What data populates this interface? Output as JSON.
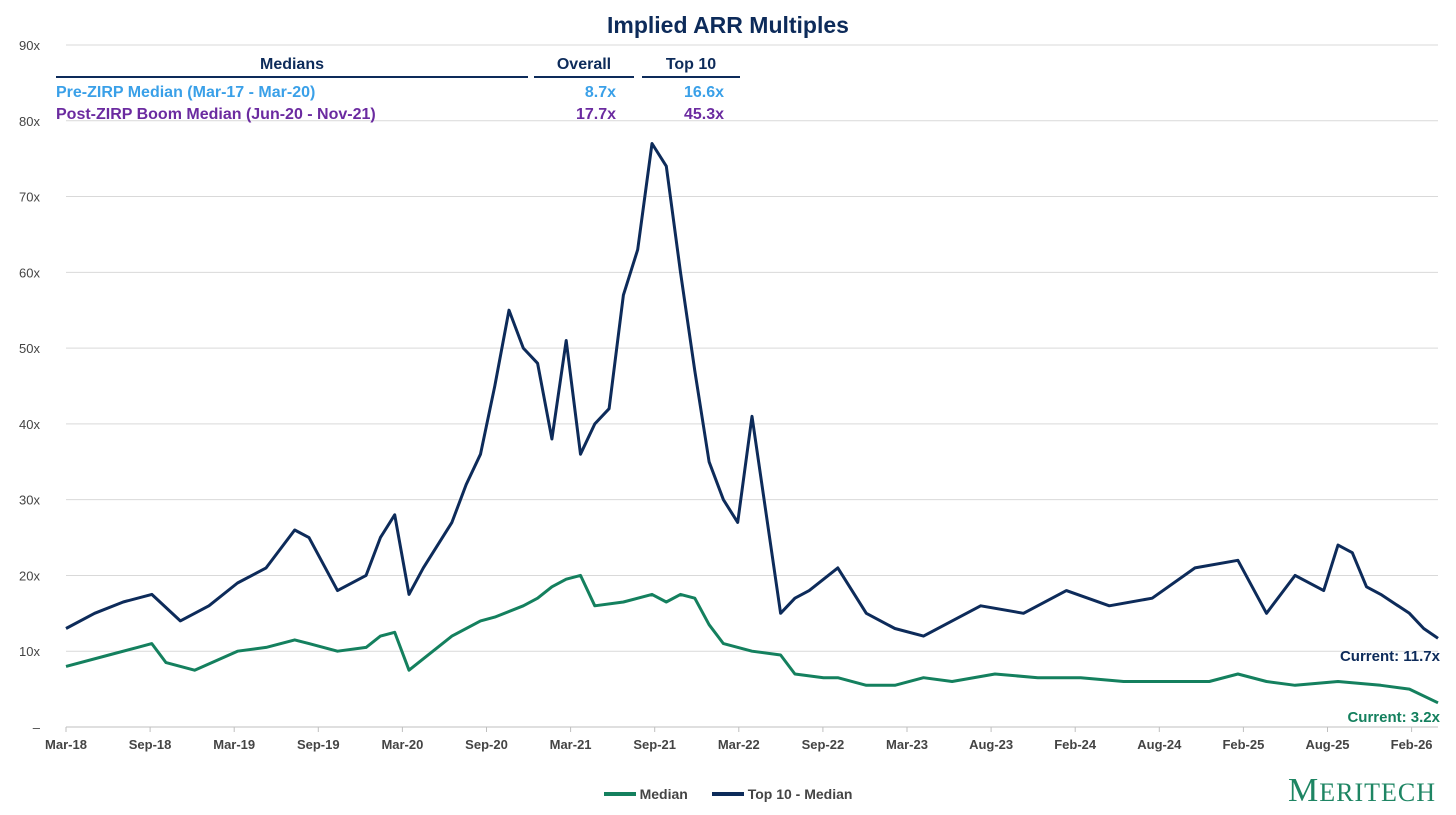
{
  "chart_data": {
    "type": "line",
    "title": "Implied ARR Multiples",
    "y_ticks": [
      "–",
      "10x",
      "20x",
      "30x",
      "40x",
      "50x",
      "60x",
      "70x",
      "80x",
      "90x"
    ],
    "ylim": [
      0,
      90
    ],
    "x_ticks": [
      "Mar-18",
      "Sep-18",
      "Mar-19",
      "Sep-19",
      "Mar-20",
      "Sep-20",
      "Mar-21",
      "Sep-21",
      "Mar-22",
      "Sep-22",
      "Mar-23",
      "Aug-23",
      "Feb-24",
      "Aug-24",
      "Feb-25",
      "Aug-25",
      "Feb-26"
    ],
    "grid": "horizontal",
    "legend_position": "bottom",
    "series": [
      {
        "name": "Median",
        "color": "#14805e",
        "x": [
          "2018-03",
          "2018-06",
          "2018-08",
          "2018-09",
          "2018-10",
          "2018-12",
          "2019-03",
          "2019-05",
          "2019-07",
          "2019-08",
          "2019-10",
          "2019-12",
          "2020-01",
          "2020-02",
          "2020-03",
          "2020-04",
          "2020-06",
          "2020-08",
          "2020-09",
          "2020-11",
          "2020-12",
          "2021-01",
          "2021-02",
          "2021-03",
          "2021-04",
          "2021-06",
          "2021-08",
          "2021-09",
          "2021-10",
          "2021-11",
          "2021-12",
          "2022-01",
          "2022-03",
          "2022-05",
          "2022-06",
          "2022-08",
          "2022-09",
          "2022-11",
          "2023-01",
          "2023-03",
          "2023-05",
          "2023-08",
          "2023-11",
          "2024-02",
          "2024-05",
          "2024-08",
          "2024-11",
          "2025-01",
          "2025-03",
          "2025-05",
          "2025-08",
          "2025-11",
          "2026-01",
          "2026-03"
        ],
        "values": [
          8.0,
          9.5,
          10.5,
          11.0,
          8.5,
          7.5,
          10.0,
          10.5,
          11.5,
          11.0,
          10.0,
          10.5,
          12.0,
          12.5,
          7.5,
          9.0,
          12.0,
          14.0,
          14.5,
          16.0,
          17.0,
          18.5,
          19.5,
          20.0,
          16.0,
          16.5,
          17.5,
          16.5,
          17.5,
          17.0,
          13.5,
          11.0,
          10.0,
          9.5,
          7.0,
          6.5,
          6.5,
          5.5,
          5.5,
          6.5,
          6.0,
          7.0,
          6.5,
          6.5,
          6.0,
          6.0,
          6.0,
          7.0,
          6.0,
          5.5,
          6.0,
          5.5,
          5.0,
          3.2
        ]
      },
      {
        "name": "Top 10 - Median",
        "color": "#0d2b5a",
        "x": [
          "2018-03",
          "2018-05",
          "2018-07",
          "2018-09",
          "2018-11",
          "2019-01",
          "2019-03",
          "2019-05",
          "2019-07",
          "2019-08",
          "2019-10",
          "2019-12",
          "2020-01",
          "2020-02",
          "2020-03",
          "2020-04",
          "2020-06",
          "2020-07",
          "2020-08",
          "2020-09",
          "2020-10",
          "2020-11",
          "2020-12",
          "2021-01",
          "2021-02",
          "2021-03",
          "2021-04",
          "2021-05",
          "2021-06",
          "2021-07",
          "2021-08",
          "2021-09",
          "2021-10",
          "2021-11",
          "2021-12",
          "2022-01",
          "2022-02",
          "2022-03",
          "2022-04",
          "2022-05",
          "2022-06",
          "2022-07",
          "2022-09",
          "2022-11",
          "2023-01",
          "2023-03",
          "2023-05",
          "2023-07",
          "2023-10",
          "2024-01",
          "2024-04",
          "2024-07",
          "2024-10",
          "2025-01",
          "2025-03",
          "2025-05",
          "2025-07",
          "2025-08",
          "2025-09",
          "2025-10",
          "2025-11",
          "2026-01",
          "2026-02",
          "2026-03"
        ],
        "values": [
          13.0,
          15.0,
          16.5,
          17.5,
          14.0,
          16.0,
          19.0,
          21.0,
          26.0,
          25.0,
          18.0,
          20.0,
          25.0,
          28.0,
          17.5,
          21.0,
          27.0,
          32.0,
          36.0,
          45.0,
          55.0,
          50.0,
          48.0,
          38.0,
          51.0,
          36.0,
          40.0,
          42.0,
          57.0,
          63.0,
          77.0,
          74.0,
          60.0,
          47.0,
          35.0,
          30.0,
          27.0,
          41.0,
          28.0,
          15.0,
          17.0,
          18.0,
          21.0,
          15.0,
          13.0,
          12.0,
          14.0,
          16.0,
          15.0,
          18.0,
          16.0,
          17.0,
          21.0,
          22.0,
          15.0,
          20.0,
          18.0,
          24.0,
          23.0,
          18.5,
          17.5,
          15.0,
          13.0,
          11.7
        ]
      }
    ],
    "annotations": [
      {
        "text": "Current: 11.7x",
        "series": "Top 10 - Median"
      },
      {
        "text": "Current: 3.2x",
        "series": "Median"
      }
    ]
  },
  "medians_table": {
    "headers": {
      "label": "Medians",
      "overall": "Overall",
      "top10": "Top 10"
    },
    "rows": [
      {
        "label": "Pre-ZIRP Median (Mar-17 - Mar-20)",
        "overall": "8.7x",
        "top10": "16.6x",
        "color": "#3aa0e8"
      },
      {
        "label": "Post-ZIRP Boom Median (Jun-20 - Nov-21)",
        "overall": "17.7x",
        "top10": "45.3x",
        "color": "#6b2ba0"
      }
    ]
  },
  "legend": [
    "Median",
    "Top 10 - Median"
  ],
  "logo": "Meritech"
}
